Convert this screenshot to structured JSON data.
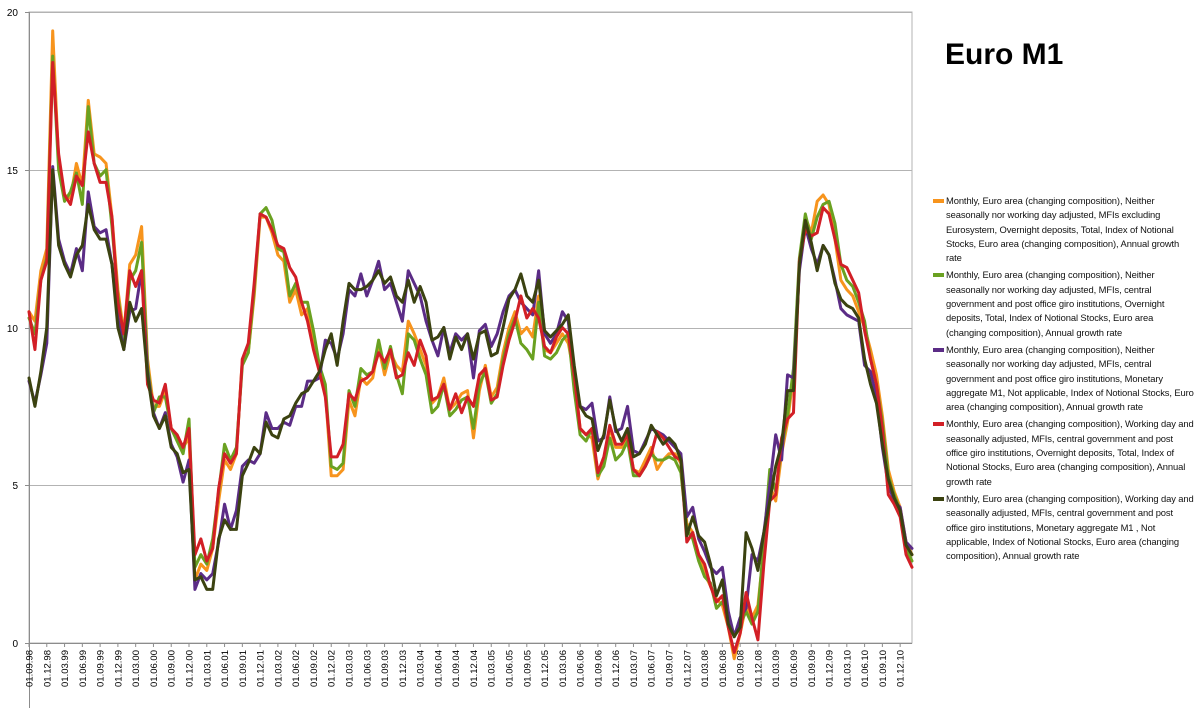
{
  "chart_data": {
    "type": "line",
    "title": "Euro M1",
    "xlabel": "",
    "ylabel": "",
    "ylim": [
      0,
      20
    ],
    "yticks": [
      0,
      5,
      10,
      15,
      20
    ],
    "grid": true,
    "legend_position": "right",
    "x": [
      "01.09.98",
      "01.10.98",
      "01.11.98",
      "01.12.98",
      "01.01.99",
      "01.02.99",
      "01.03.99",
      "01.04.99",
      "01.05.99",
      "01.06.99",
      "01.07.99",
      "01.08.99",
      "01.09.99",
      "01.10.99",
      "01.11.99",
      "01.12.99",
      "01.01.00",
      "01.02.00",
      "01.03.00",
      "01.04.00",
      "01.05.00",
      "01.06.00",
      "01.07.00",
      "01.08.00",
      "01.09.00",
      "01.10.00",
      "01.11.00",
      "01.12.00",
      "01.01.01",
      "01.02.01",
      "01.03.01",
      "01.04.01",
      "01.05.01",
      "01.06.01",
      "01.07.01",
      "01.08.01",
      "01.09.01",
      "01.10.01",
      "01.11.01",
      "01.12.01",
      "01.01.02",
      "01.02.02",
      "01.03.02",
      "01.04.02",
      "01.05.02",
      "01.06.02",
      "01.07.02",
      "01.08.02",
      "01.09.02",
      "01.10.02",
      "01.11.02",
      "01.12.02",
      "01.01.03",
      "01.02.03",
      "01.03.03",
      "01.04.03",
      "01.05.03",
      "01.06.03",
      "01.07.03",
      "01.08.03",
      "01.09.03",
      "01.10.03",
      "01.11.03",
      "01.12.03",
      "01.01.04",
      "01.02.04",
      "01.03.04",
      "01.04.04",
      "01.05.04",
      "01.06.04",
      "01.07.04",
      "01.08.04",
      "01.09.04",
      "01.10.04",
      "01.11.04",
      "01.12.04",
      "01.01.05",
      "01.02.05",
      "01.03.05",
      "01.04.05",
      "01.05.05",
      "01.06.05",
      "01.07.05",
      "01.08.05",
      "01.09.05",
      "01.10.05",
      "01.11.05",
      "01.12.05",
      "01.01.06",
      "01.02.06",
      "01.03.06",
      "01.04.06",
      "01.05.06",
      "01.06.06",
      "01.07.06",
      "01.08.06",
      "01.09.06",
      "01.10.06",
      "01.11.06",
      "01.12.06",
      "01.01.07",
      "01.02.07",
      "01.03.07",
      "01.04.07",
      "01.05.07",
      "01.06.07",
      "01.07.07",
      "01.08.07",
      "01.09.07",
      "01.10.07",
      "01.11.07",
      "01.12.07",
      "01.01.08",
      "01.02.08",
      "01.03.08",
      "01.04.08",
      "01.05.08",
      "01.06.08",
      "01.07.08",
      "01.08.08",
      "01.09.08",
      "01.10.08",
      "01.11.08",
      "01.12.08",
      "01.01.09",
      "01.02.09",
      "01.03.09",
      "01.04.09",
      "01.05.09",
      "01.06.09",
      "01.07.09",
      "01.08.09",
      "01.09.09",
      "01.10.09",
      "01.11.09",
      "01.12.09",
      "01.01.10",
      "01.02.10",
      "01.03.10",
      "01.04.10",
      "01.05.10",
      "01.06.10",
      "01.07.10",
      "01.08.10",
      "01.09.10",
      "01.10.10",
      "01.11.10",
      "01.12.10",
      "01.01.11",
      "01.02.11"
    ],
    "xtick_labels": [
      "01.09.98",
      "01.12.98",
      "01.03.99",
      "01.06.99",
      "01.09.99",
      "01.12.99",
      "01.03.00",
      "01.06.00",
      "01.09.00",
      "01.12.00",
      "01.03.01",
      "01.06.01",
      "01.09.01",
      "01.12.01",
      "01.03.02",
      "01.06.02",
      "01.09.02",
      "01.12.02",
      "01.03.03",
      "01.06.03",
      "01.09.03",
      "01.12.03",
      "01.03.04",
      "01.06.04",
      "01.09.04",
      "01.12.04",
      "01.03.05",
      "01.06.05",
      "01.09.05",
      "01.12.05",
      "01.03.06",
      "01.06.06",
      "01.09.06",
      "01.12.06",
      "01.03.07",
      "01.06.07",
      "01.09.07",
      "01.12.07",
      "01.03.08",
      "01.06.08",
      "01.09.08",
      "01.12.08",
      "01.03.09",
      "01.06.09",
      "01.09.09",
      "01.12.09",
      "01.03.10",
      "01.06.10",
      "01.09.10",
      "01.12.10"
    ],
    "series": [
      {
        "name": "Monthly, Euro area (changing composition), Neither seasonally nor working day adjusted, MFIs excluding Eurosystem, Overnight deposits, Total, Index of Notional Stocks, Euro area (changing composition), Annual growth rate",
        "color": "#f7941d",
        "values": [
          10.5,
          10.2,
          11.8,
          12.5,
          19.4,
          15.3,
          14.2,
          14.1,
          15.2,
          14.5,
          17.2,
          15.5,
          15.4,
          15.2,
          13.5,
          11.2,
          9.8,
          12.0,
          12.3,
          13.2,
          9.0,
          7.5,
          7.5,
          8.0,
          6.8,
          6.5,
          6.2,
          6.5,
          2.0,
          2.5,
          2.3,
          3.0,
          4.5,
          5.8,
          5.5,
          6.0,
          9.0,
          9.2,
          11.0,
          13.5,
          13.5,
          13.0,
          12.3,
          12.1,
          10.8,
          11.2,
          10.4,
          10.6,
          9.5,
          8.6,
          8.0,
          5.3,
          5.3,
          5.5,
          7.7,
          7.2,
          8.4,
          8.2,
          8.4,
          9.4,
          8.5,
          9.2,
          8.8,
          8.6,
          10.2,
          9.8,
          9.3,
          8.8,
          7.6,
          7.8,
          8.4,
          7.4,
          7.6,
          7.9,
          8.0,
          6.5,
          8.0,
          8.8,
          7.8,
          8.1,
          9.2,
          10.0,
          10.5,
          9.8,
          10.0,
          9.7,
          11.0,
          9.3,
          9.2,
          9.5,
          9.8,
          9.5,
          8.5,
          6.8,
          6.6,
          6.5,
          5.2,
          5.8,
          6.8,
          6.2,
          6.2,
          6.6,
          5.5,
          5.4,
          5.8,
          6.2,
          5.5,
          5.8,
          6.0,
          6.0,
          5.7,
          3.8,
          3.5,
          2.8,
          2.2,
          1.8,
          1.4,
          1.2,
          0.5,
          -0.5,
          0.3,
          1.2,
          0.8,
          1.2,
          3.0,
          5.0,
          4.5,
          6.0,
          7.0,
          8.5,
          12.0,
          13.5,
          13.0,
          14.0,
          14.2,
          13.9,
          12.8,
          11.5,
          11.2,
          11.0,
          10.5,
          10.0,
          9.3,
          8.5,
          7.2,
          5.5,
          4.8,
          4.3,
          3.2,
          2.8
        ]
      },
      {
        "name": "Monthly, Euro area (changing composition), Neither seasonally nor working day adjusted, MFIs, central government and post office giro institutions, Overnight deposits, Total, Index of Notional Stocks, Euro area (changing composition), Annual growth rate",
        "color": "#6aa121",
        "values": [
          10.3,
          9.8,
          11.5,
          12.2,
          18.6,
          15.0,
          14.0,
          14.3,
          14.9,
          13.9,
          17.0,
          15.2,
          14.8,
          15.0,
          13.2,
          11.0,
          9.6,
          11.5,
          11.8,
          12.7,
          8.8,
          7.3,
          7.8,
          7.8,
          6.8,
          6.4,
          6.0,
          7.1,
          2.4,
          2.8,
          2.5,
          3.3,
          4.8,
          6.3,
          5.8,
          6.2,
          8.8,
          9.2,
          11.2,
          13.6,
          13.8,
          13.4,
          12.5,
          12.4,
          11.0,
          11.4,
          10.8,
          10.8,
          9.9,
          8.8,
          8.2,
          5.6,
          5.5,
          5.7,
          8.0,
          7.5,
          8.7,
          8.5,
          8.6,
          9.6,
          8.7,
          9.4,
          8.5,
          7.9,
          9.8,
          9.6,
          9.0,
          8.5,
          7.3,
          7.5,
          8.2,
          7.2,
          7.4,
          7.7,
          7.8,
          6.8,
          8.2,
          8.6,
          7.6,
          7.9,
          9.0,
          9.8,
          10.3,
          9.5,
          9.3,
          9.0,
          10.8,
          9.1,
          9.0,
          9.2,
          9.6,
          9.8,
          8.0,
          6.6,
          6.4,
          6.8,
          5.3,
          5.6,
          6.5,
          5.8,
          6.0,
          6.4,
          5.3,
          5.3,
          5.6,
          6.0,
          5.8,
          5.8,
          5.9,
          5.8,
          5.4,
          3.6,
          3.3,
          2.6,
          2.1,
          1.9,
          1.1,
          1.3,
          0.9,
          0.2,
          0.6,
          1.0,
          0.6,
          1.0,
          3.2,
          5.5,
          4.8,
          6.2,
          7.2,
          8.7,
          12.2,
          13.6,
          12.8,
          13.5,
          13.9,
          14.0,
          13.3,
          12.0,
          11.5,
          11.3,
          10.8,
          10.2,
          9.0,
          8.2,
          7.0,
          5.3,
          4.7,
          4.2,
          3.0,
          2.6
        ]
      },
      {
        "name": "Monthly, Euro area (changing composition), Neither seasonally nor working day adjusted, MFIs, central government and post office giro institutions, Monetary aggregate M1, Not applicable, Index of Notional Stocks, Euro area (changing composition), Annual growth rate",
        "color": "#5b2c86",
        "values": [
          8.3,
          7.6,
          8.5,
          9.5,
          15.1,
          12.8,
          12.1,
          11.7,
          12.5,
          11.8,
          14.3,
          13.2,
          13.0,
          13.1,
          12.0,
          10.3,
          9.3,
          10.5,
          10.6,
          11.8,
          8.6,
          7.3,
          6.8,
          7.3,
          6.3,
          5.9,
          5.1,
          5.8,
          1.7,
          2.2,
          2.0,
          2.2,
          3.2,
          4.4,
          3.6,
          4.2,
          5.6,
          5.8,
          5.7,
          6.0,
          7.3,
          6.8,
          6.8,
          7.0,
          6.9,
          7.5,
          7.5,
          8.3,
          8.3,
          8.4,
          9.6,
          9.5,
          9.0,
          9.8,
          11.2,
          11.0,
          11.7,
          11.0,
          11.5,
          12.1,
          11.2,
          11.4,
          10.8,
          10.2,
          11.8,
          11.4,
          11.0,
          10.2,
          9.6,
          9.1,
          10.0,
          9.2,
          9.8,
          9.6,
          9.8,
          8.4,
          9.9,
          10.1,
          9.4,
          9.8,
          10.5,
          11.0,
          11.2,
          10.8,
          10.6,
          10.4,
          11.8,
          9.8,
          9.5,
          9.8,
          10.5,
          10.2,
          8.5,
          7.5,
          7.4,
          7.6,
          6.4,
          6.5,
          7.8,
          6.7,
          6.8,
          7.5,
          6.1,
          6.0,
          6.4,
          6.8,
          6.7,
          6.6,
          6.4,
          6.2,
          6.0,
          4.0,
          4.3,
          3.3,
          2.9,
          2.4,
          2.2,
          2.4,
          1.0,
          0.2,
          0.8,
          1.1,
          2.8,
          2.6,
          3.5,
          5.0,
          6.6,
          5.8,
          8.5,
          8.4,
          11.8,
          13.2,
          12.5,
          12.0,
          12.6,
          12.3,
          11.5,
          10.6,
          10.4,
          10.3,
          10.2,
          8.8,
          8.6,
          7.8,
          6.2,
          5.0,
          4.5,
          4.3,
          3.2,
          3.0
        ]
      },
      {
        "name": "Monthly, Euro area (changing composition), Working day and seasonally adjusted, MFIs, central government and post office giro institutions, Overnight deposits, Total, Index of Notional Stocks, Euro area (changing composition), Annual growth rate",
        "color": "#d21f26",
        "values": [
          10.5,
          9.3,
          11.5,
          12.1,
          18.4,
          15.5,
          14.2,
          13.9,
          14.8,
          14.5,
          16.2,
          15.2,
          14.6,
          14.6,
          13.5,
          10.8,
          9.8,
          11.8,
          11.3,
          11.8,
          8.2,
          7.7,
          7.6,
          8.2,
          6.8,
          6.6,
          6.2,
          6.8,
          2.8,
          3.3,
          2.6,
          3.0,
          4.9,
          6.0,
          5.7,
          6.0,
          9.0,
          9.5,
          11.4,
          13.6,
          13.5,
          13.1,
          12.6,
          12.5,
          11.9,
          11.6,
          10.8,
          10.2,
          9.3,
          8.6,
          7.8,
          5.9,
          5.9,
          6.3,
          7.9,
          7.7,
          8.3,
          8.4,
          8.6,
          9.2,
          8.9,
          9.3,
          8.4,
          8.5,
          9.2,
          8.8,
          9.6,
          9.1,
          7.7,
          7.8,
          8.2,
          7.4,
          7.9,
          7.3,
          7.8,
          7.5,
          8.5,
          8.7,
          7.7,
          7.8,
          8.8,
          9.6,
          10.2,
          11.0,
          10.3,
          10.6,
          10.3,
          9.4,
          9.2,
          9.7,
          10.0,
          9.8,
          8.5,
          6.8,
          6.6,
          6.8,
          5.4,
          5.9,
          6.9,
          6.3,
          6.3,
          6.6,
          5.5,
          5.3,
          5.6,
          6.0,
          6.7,
          6.5,
          6.2,
          5.9,
          5.8,
          3.2,
          3.5,
          2.8,
          2.5,
          1.8,
          1.3,
          1.5,
          0.5,
          -0.3,
          0.3,
          1.6,
          0.8,
          0.1,
          2.5,
          4.5,
          4.7,
          6.5,
          7.1,
          7.3,
          12.1,
          13.1,
          12.9,
          13.0,
          13.8,
          13.6,
          12.8,
          12.0,
          11.9,
          11.5,
          11.1,
          9.9,
          9.0,
          8.2,
          6.8,
          4.7,
          4.4,
          4.0,
          2.8,
          2.4
        ]
      },
      {
        "name": "Monthly, Euro area (changing composition), Working day and seasonally adjusted, MFIs, central government and post office giro institutions, Monetary aggregate M1 , Not applicable, Index of Notional Stocks, Euro area (changing composition), Annual growth rate",
        "color": "#3b4210",
        "values": [
          8.4,
          7.5,
          8.6,
          10.0,
          15.0,
          12.6,
          12.0,
          11.6,
          12.3,
          12.6,
          13.9,
          13.1,
          12.8,
          12.8,
          12.0,
          10.0,
          9.3,
          10.8,
          10.2,
          10.6,
          8.5,
          7.2,
          6.8,
          7.2,
          6.2,
          6.0,
          5.4,
          5.5,
          2.0,
          2.1,
          1.7,
          1.7,
          3.3,
          3.9,
          3.6,
          3.6,
          5.3,
          5.7,
          6.2,
          6.0,
          7.0,
          6.6,
          6.5,
          7.1,
          7.2,
          7.6,
          7.9,
          8.0,
          8.3,
          8.6,
          9.3,
          9.8,
          8.8,
          10.2,
          11.4,
          11.2,
          11.2,
          11.3,
          11.5,
          11.8,
          11.4,
          11.6,
          11.0,
          10.8,
          11.5,
          10.8,
          11.3,
          10.8,
          9.6,
          9.7,
          10.0,
          9.0,
          9.7,
          9.3,
          9.8,
          9.0,
          9.8,
          9.9,
          9.1,
          9.2,
          10.0,
          10.9,
          11.2,
          11.7,
          11.0,
          10.8,
          11.5,
          9.9,
          9.7,
          9.9,
          10.1,
          10.4,
          8.8,
          7.5,
          7.2,
          7.1,
          6.1,
          6.6,
          7.7,
          6.8,
          6.4,
          6.8,
          5.9,
          6.0,
          6.3,
          6.9,
          6.6,
          6.3,
          6.5,
          6.3,
          5.8,
          3.4,
          4.0,
          3.4,
          3.2,
          2.5,
          1.5,
          2.0,
          0.6,
          0.2,
          0.5,
          3.5,
          3.0,
          2.3,
          3.5,
          4.5,
          5.6,
          6.3,
          8.0,
          8.0,
          12.0,
          13.4,
          12.7,
          11.8,
          12.6,
          12.3,
          11.4,
          10.9,
          10.7,
          10.6,
          10.3,
          9.0,
          8.2,
          7.6,
          6.3,
          5.2,
          4.6,
          4.2,
          3.1,
          2.8
        ]
      }
    ]
  }
}
